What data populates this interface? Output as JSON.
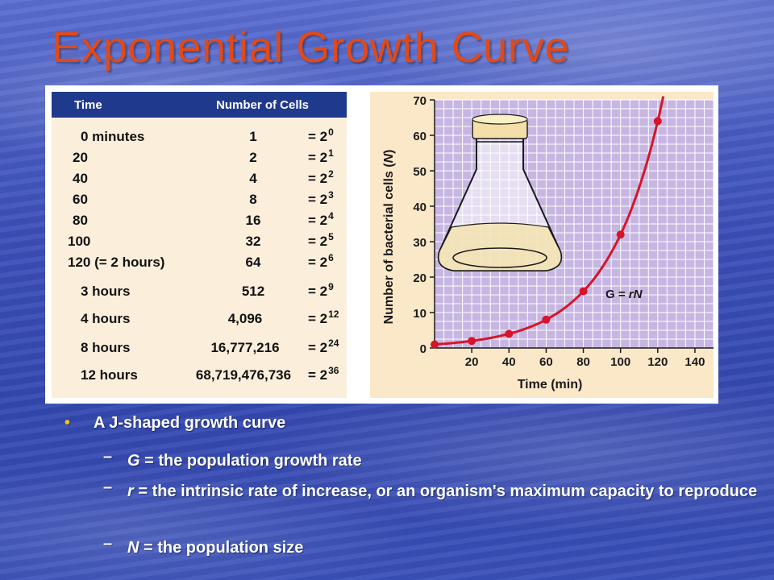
{
  "slide": {
    "title": "Exponential Growth Curve"
  },
  "table": {
    "headers": [
      "Time",
      "Number of Cells"
    ],
    "rows": [
      {
        "time": "0 minutes",
        "cells": "1",
        "base": "= 2",
        "exp": "0"
      },
      {
        "time": "20",
        "cells": "2",
        "base": "= 2",
        "exp": "1"
      },
      {
        "time": "40",
        "cells": "4",
        "base": "= 2",
        "exp": "2"
      },
      {
        "time": "60",
        "cells": "8",
        "base": "= 2",
        "exp": "3"
      },
      {
        "time": "80",
        "cells": "16",
        "base": "= 2",
        "exp": "4"
      },
      {
        "time": "100",
        "cells": "32",
        "base": "= 2",
        "exp": "5"
      },
      {
        "time": "120 (= 2 hours)",
        "cells": "64",
        "base": "= 2",
        "exp": "6"
      },
      {
        "time": "3 hours",
        "cells": "512",
        "base": "= 2",
        "exp": "9"
      },
      {
        "time": "4 hours",
        "cells": "4,096",
        "base": "= 2",
        "exp": "12"
      },
      {
        "time": "8 hours",
        "cells": "16,777,216",
        "base": "= 2",
        "exp": "24"
      },
      {
        "time": "12 hours",
        "cells": "68,719,476,736",
        "base": "= 2",
        "exp": "36"
      }
    ]
  },
  "chart_data": {
    "type": "line",
    "xlabel": "Time (min)",
    "ylabel": "Number of bacterial cells (N)",
    "x_ticks": [
      20,
      40,
      60,
      80,
      100,
      120,
      140
    ],
    "y_ticks": [
      0,
      10,
      20,
      30,
      40,
      50,
      60,
      70
    ],
    "x_range": [
      0,
      150
    ],
    "y_range": [
      0,
      70
    ],
    "grid": true,
    "annotation": "G = rN",
    "points": [
      {
        "x": 0,
        "y": 1
      },
      {
        "x": 20,
        "y": 2
      },
      {
        "x": 40,
        "y": 4
      },
      {
        "x": 60,
        "y": 8
      },
      {
        "x": 80,
        "y": 16
      },
      {
        "x": 100,
        "y": 32
      },
      {
        "x": 120,
        "y": 64
      }
    ],
    "curve_color": "#d8142a",
    "background_color": "#c7b6e2",
    "grid_color": "#ffffff",
    "illustration": "flask-icon"
  },
  "bullets": {
    "main": "A J-shaped growth curve",
    "subs": [
      {
        "var": "G",
        "text": " = the population growth rate"
      },
      {
        "var": "r",
        "text": " = the intrinsic rate of increase, or an organism's maximum capacity to reproduce"
      },
      {
        "var": "N",
        "text": " = the population size"
      }
    ]
  }
}
